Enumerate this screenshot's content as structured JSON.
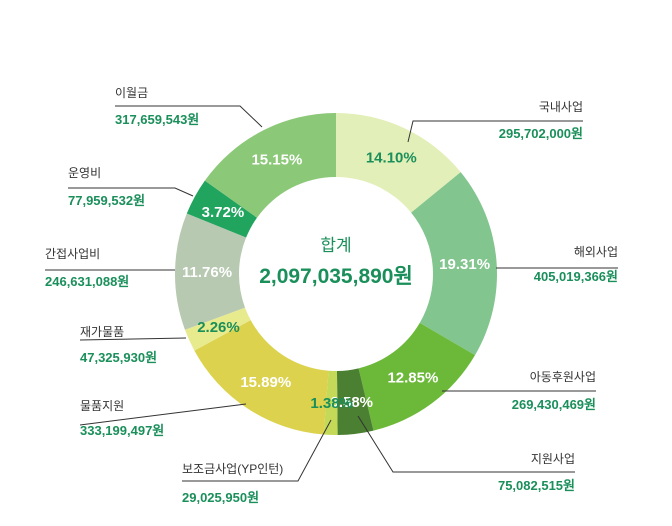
{
  "chart_data": {
    "type": "pie",
    "center": {
      "title": "합계",
      "total": "2,097,035,890원"
    },
    "slices": [
      {
        "name": "국내사업",
        "amount": "295,702,000원",
        "percent": 14.1,
        "label": "14.10%",
        "color": "#e3efb8",
        "label_color": "#1a8f5a"
      },
      {
        "name": "해외사업",
        "amount": "405,019,366원",
        "percent": 19.31,
        "label": "19.31%",
        "color": "#82c58e",
        "label_color": "#ffffff"
      },
      {
        "name": "아동후원사업",
        "amount": "269,430,469원",
        "percent": 12.85,
        "label": "12.85%",
        "color": "#6cb93a",
        "label_color": "#ffffff"
      },
      {
        "name": "지원사업",
        "amount": "75,082,515원",
        "percent": 3.58,
        "label": "3.58%",
        "color": "#4b7f32",
        "label_color": "#ffffff"
      },
      {
        "name": "보조금사업(YP인턴)",
        "amount": "29,025,950원",
        "percent": 1.38,
        "label": "1.38%",
        "color": "#c3d957",
        "label_color": "#1a8f5a"
      },
      {
        "name": "물품지원",
        "amount": "333,199,497원",
        "percent": 15.89,
        "label": "15.89%",
        "color": "#dcd24e",
        "label_color": "#ffffff"
      },
      {
        "name": "재가물품",
        "amount": "47,325,930원",
        "percent": 2.26,
        "label": "2.26%",
        "color": "#e8ea8e",
        "label_color": "#1a8f5a"
      },
      {
        "name": "간접사업비",
        "amount": "246,631,088원",
        "percent": 11.76,
        "label": "11.76%",
        "color": "#b7c9b1",
        "label_color": "#ffffff"
      },
      {
        "name": "운영비",
        "amount": "77,959,532원",
        "percent": 3.72,
        "label": "3.72%",
        "color": "#21a45e",
        "label_color": "#ffffff"
      },
      {
        "name": "이월금",
        "amount": "317,659,543원",
        "percent": 15.15,
        "label": "15.15%",
        "color": "#8bc878",
        "label_color": "#ffffff"
      }
    ]
  }
}
